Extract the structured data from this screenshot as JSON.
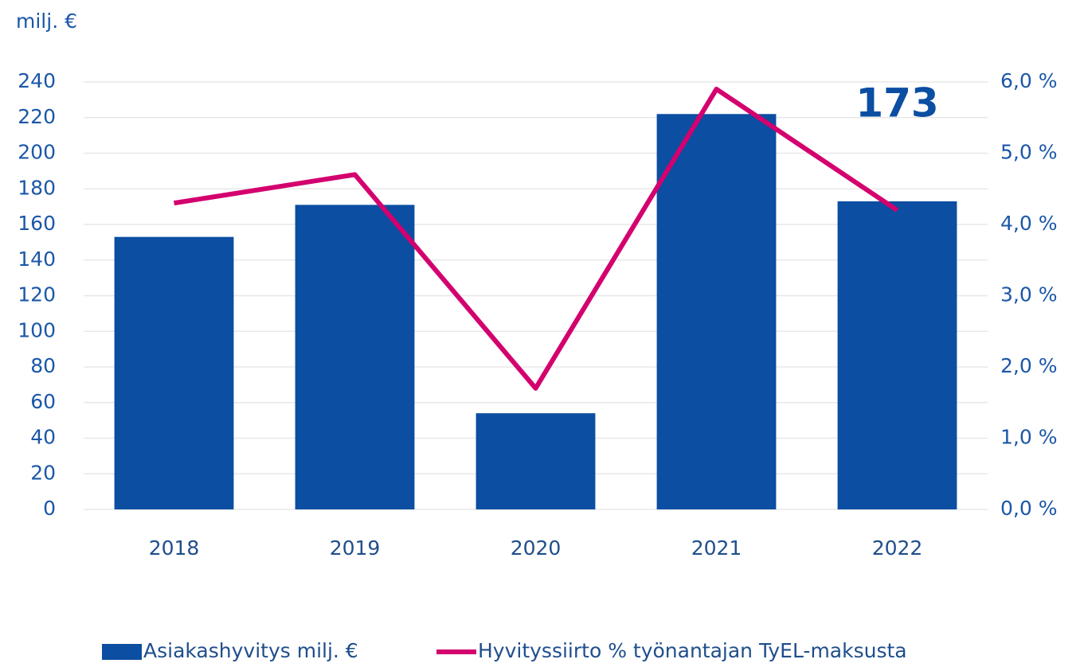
{
  "chart_data": {
    "type": "bar_line",
    "y_axis_label": "milj. €",
    "categories": [
      "2018",
      "2019",
      "2020",
      "2021",
      "2022"
    ],
    "series": [
      {
        "name": "Asiakashyvitys milj. €",
        "type": "bar",
        "color": "#0b4ea2",
        "values": [
          153,
          171,
          54,
          222,
          173
        ]
      },
      {
        "name": "Hyvityssiirto % työnantajan TyEL-maksusta",
        "type": "line",
        "axis": "y2",
        "color": "#d3006e",
        "values": [
          4.3,
          4.7,
          1.7,
          5.9,
          4.2
        ]
      }
    ],
    "annotations": [
      {
        "text": "173"
      }
    ],
    "ylim": [
      0,
      240
    ],
    "yticks": [
      0,
      20,
      40,
      60,
      80,
      100,
      120,
      140,
      160,
      180,
      200,
      220,
      240
    ],
    "y2lim": [
      0,
      6
    ],
    "y2ticks": [
      {
        "value": 0,
        "label": "0,0 %"
      },
      {
        "value": 1,
        "label": "1,0 %"
      },
      {
        "value": 2,
        "label": "2,0 %"
      },
      {
        "value": 3,
        "label": "3,0 %"
      },
      {
        "value": 4,
        "label": "4,0 %"
      },
      {
        "value": 5,
        "label": "5,0 %"
      },
      {
        "value": 6,
        "label": "6,0 %"
      }
    ],
    "grid": true,
    "legend": "bottom"
  }
}
